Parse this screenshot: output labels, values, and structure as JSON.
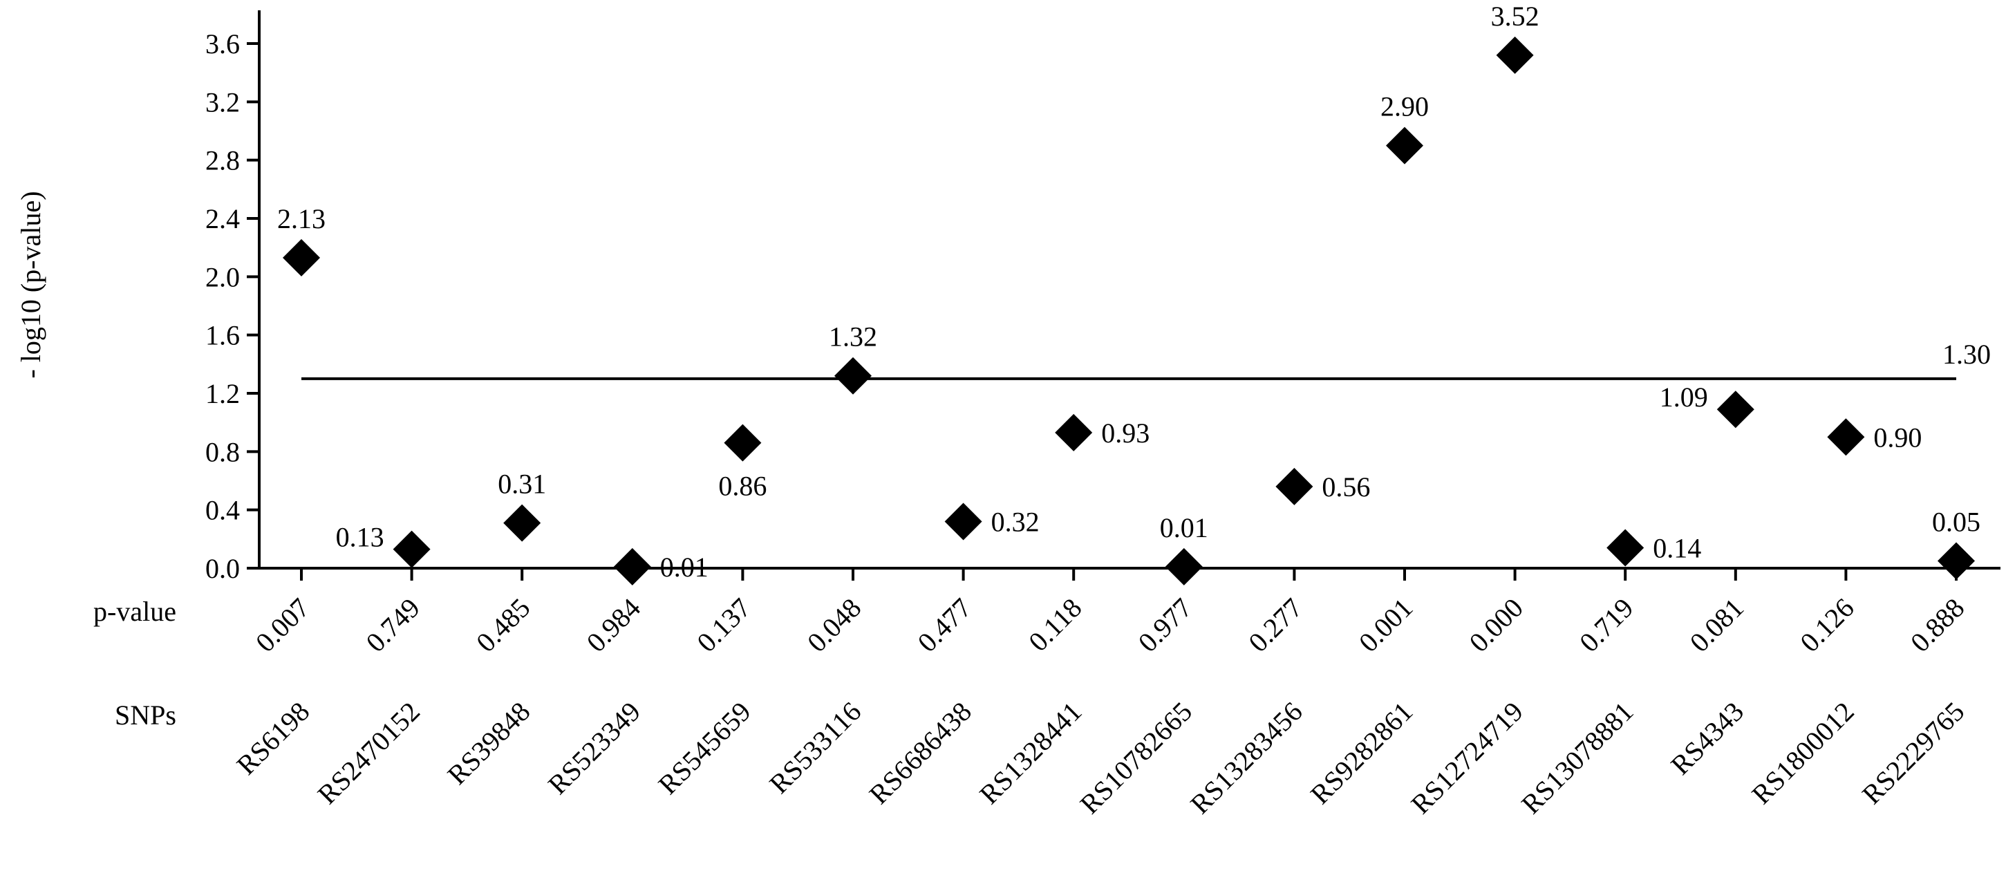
{
  "chart_data": {
    "type": "scatter",
    "ylabel": "- log10 (p-value)",
    "ylim": [
      0,
      3.8
    ],
    "yticks": [
      "0.0",
      "0.4",
      "0.8",
      "1.2",
      "1.6",
      "2.0",
      "2.4",
      "2.8",
      "3.2",
      "3.6"
    ],
    "row_labels": {
      "pvalue": "p-value",
      "snps": "SNPs"
    },
    "categories": [
      "RS6198",
      "RS2470152",
      "RS39848",
      "RS523349",
      "RS545659",
      "RS533116",
      "RS6686438",
      "RS1328441",
      "RS10782665",
      "RS13283456",
      "RS9282861",
      "RS12724719",
      "RS13078881",
      "RS4343",
      "RS1800012",
      "RS2229765"
    ],
    "pvalues": [
      "0.007",
      "0.749",
      "0.485",
      "0.984",
      "0.137",
      "0.048",
      "0.477",
      "0.118",
      "0.977",
      "0.277",
      "0.001",
      "0.000",
      "0.719",
      "0.081",
      "0.126",
      "0.888"
    ],
    "values": [
      2.13,
      0.13,
      0.31,
      0.01,
      0.86,
      1.32,
      0.32,
      0.93,
      0.01,
      0.56,
      2.9,
      3.52,
      0.14,
      1.09,
      0.9,
      0.05
    ],
    "value_labels": [
      "2.13",
      "0.13",
      "0.31",
      "0.01",
      "0.86",
      "1.32",
      "0.32",
      "0.93",
      "0.01",
      "0.56",
      "2.90",
      "3.52",
      "0.14",
      "1.09",
      "0.90",
      "0.05"
    ],
    "label_positions": [
      "above",
      "left",
      "above",
      "right",
      "below",
      "above",
      "right",
      "right",
      "above",
      "right",
      "above",
      "above",
      "right",
      "left",
      "right",
      "above"
    ],
    "threshold": {
      "value": 1.3,
      "label": "1.30"
    },
    "marker": "diamond",
    "marker_color": "#000000",
    "grid": false,
    "legend": "none"
  }
}
